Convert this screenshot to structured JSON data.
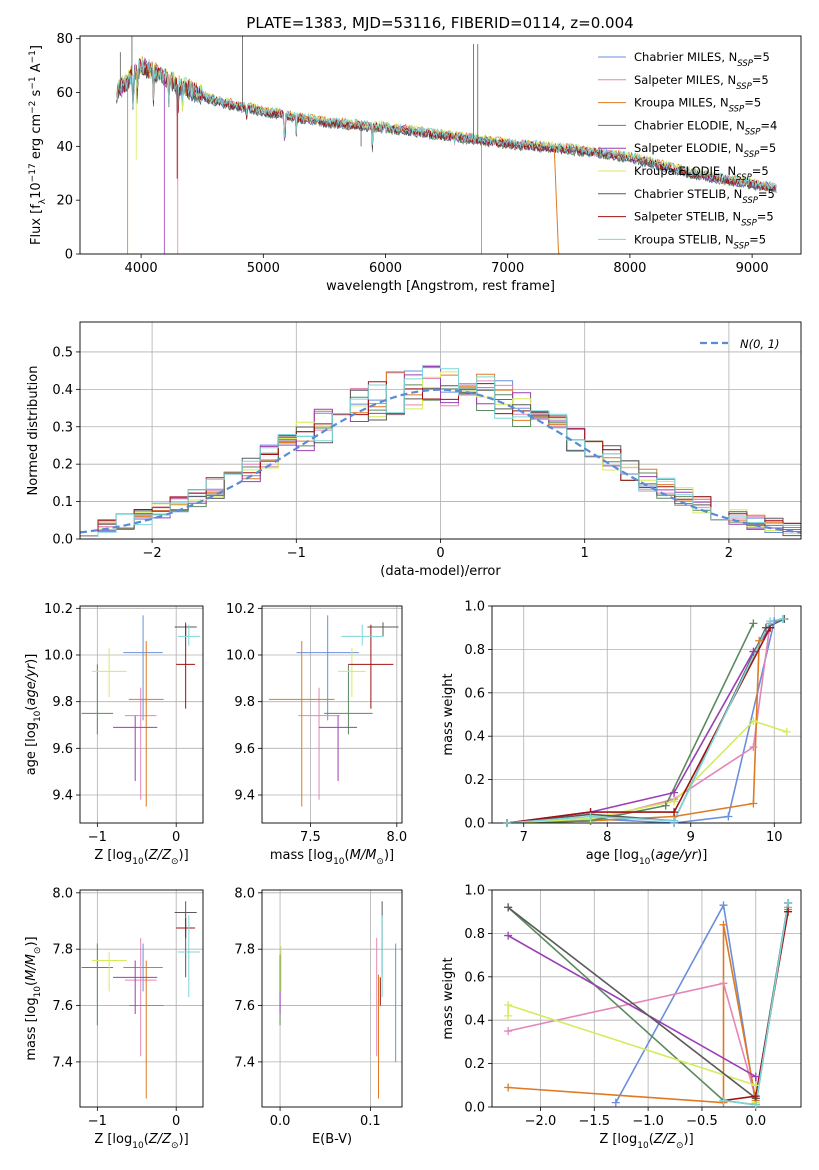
{
  "title": "PLATE=1383, MJD=53116, FIBERID=0114, z=0.004",
  "colors": [
    "#6a8fdc",
    "#e486b6",
    "#de7a22",
    "#5b8a5e",
    "#9b3fb5",
    "#d4ec5c",
    "#5a5a5a",
    "#a01212",
    "#7ed6d9"
  ],
  "legend_ssp": [
    {
      "label": "Chabrier MILES",
      "n": "5"
    },
    {
      "label": "Salpeter MILES",
      "n": "5"
    },
    {
      "label": "Kroupa MILES",
      "n": "5"
    },
    {
      "label": "Chabrier ELODIE",
      "n": "4"
    },
    {
      "label": "Salpeter ELODIE",
      "n": "5"
    },
    {
      "label": "Kroupa ELODIE",
      "n": "5"
    },
    {
      "label": "Chabrier STELIB",
      "n": "5"
    },
    {
      "label": "Salpeter STELIB",
      "n": "5"
    },
    {
      "label": "Kroupa STELIB",
      "n": "5"
    }
  ],
  "legend_ssp_sub": "SSP",
  "legend_ssp_prefix": "N",
  "normal_label": "N(0, 1)",
  "chart_data": [
    {
      "type": "line",
      "xlabel": "wavelength [Angstrom, rest frame]",
      "ylabel": "Flux [f_λ 10^-17 erg cm^-2 s^-1 A^-1]",
      "xlim": [
        3500,
        9400
      ],
      "ylim": [
        0,
        81
      ],
      "xticks": [
        4000,
        5000,
        6000,
        7000,
        8000,
        9000
      ],
      "yticks": [
        0,
        20,
        40,
        60,
        80
      ],
      "continuum": [
        [
          3800,
          60
        ],
        [
          4000,
          70
        ],
        [
          4300,
          63
        ],
        [
          4600,
          57
        ],
        [
          5000,
          53
        ],
        [
          5500,
          49
        ],
        [
          6000,
          47
        ],
        [
          6500,
          44
        ],
        [
          7000,
          41
        ],
        [
          7500,
          39
        ],
        [
          8000,
          36
        ],
        [
          8500,
          30
        ],
        [
          9000,
          26
        ],
        [
          9200,
          24.5
        ]
      ]
    },
    {
      "type": "line",
      "xlabel": "(data-model)/error",
      "ylabel": "Normed distribution",
      "xlim": [
        -2.5,
        2.5
      ],
      "ylim": [
        0,
        0.58
      ],
      "xticks": [
        -2,
        -1,
        0,
        1,
        2
      ],
      "yticks": [
        0.0,
        0.1,
        0.2,
        0.3,
        0.4,
        0.5
      ],
      "normal": {
        "mean": 0,
        "sd": 1
      }
    },
    {
      "type": "scatter",
      "xlabel": "Z [log10(Z/Z_sun)]",
      "ylabel": "age [log10(age/yr)]",
      "xlim": [
        -1.22,
        0.34
      ],
      "ylim": [
        9.28,
        10.21
      ],
      "xticks": [
        -1,
        0
      ],
      "yticks": [
        9.4,
        9.6,
        9.8,
        10.0,
        10.2
      ],
      "points": [
        {
          "x": -0.42,
          "y": 10.01,
          "xerr": 0.25,
          "ylo": 9.72,
          "yhi": 10.17
        },
        {
          "x": -0.45,
          "y": 9.74,
          "xerr": 0.2,
          "ylo": 9.38,
          "yhi": 9.86
        },
        {
          "x": -0.38,
          "y": 9.81,
          "xerr": 0.22,
          "ylo": 9.35,
          "yhi": 10.06
        },
        {
          "x": -1.0,
          "y": 9.75,
          "xerr": 0.2,
          "ylo": 9.66,
          "yhi": 9.96
        },
        {
          "x": -0.52,
          "y": 9.69,
          "xerr": 0.28,
          "ylo": 9.46,
          "yhi": 9.74
        },
        {
          "x": -0.85,
          "y": 9.93,
          "xerr": 0.22,
          "ylo": 9.82,
          "yhi": 10.03
        },
        {
          "x": 0.12,
          "y": 10.12,
          "xerr": 0.14,
          "ylo": 10.08,
          "yhi": 10.14
        },
        {
          "x": 0.12,
          "y": 9.96,
          "xerr": 0.12,
          "ylo": 9.77,
          "yhi": 10.13
        },
        {
          "x": 0.16,
          "y": 10.08,
          "xerr": 0.14,
          "ylo": 10.04,
          "yhi": 10.13
        }
      ]
    },
    {
      "type": "scatter",
      "xlabel": "mass [log10(M/M_sun)]",
      "ylabel": "",
      "xlim": [
        7.22,
        8.03
      ],
      "ylim": [
        9.28,
        10.21
      ],
      "xticks": [
        7.5,
        8.0
      ],
      "yticks": [
        9.4,
        9.6,
        9.8,
        10.0,
        10.2
      ],
      "points": [
        {
          "x": 7.6,
          "y": 10.01,
          "xerr": 0.18,
          "ylo": 9.72,
          "yhi": 10.17
        },
        {
          "x": 7.55,
          "y": 9.74,
          "xerr": 0.12,
          "ylo": 9.38,
          "yhi": 9.86
        },
        {
          "x": 7.45,
          "y": 9.81,
          "xerr": 0.19,
          "ylo": 9.35,
          "yhi": 10.06
        },
        {
          "x": 7.72,
          "y": 9.75,
          "xerr": 0.14,
          "ylo": 9.66,
          "yhi": 9.96
        },
        {
          "x": 7.66,
          "y": 9.69,
          "xerr": 0.11,
          "ylo": 9.46,
          "yhi": 9.74
        },
        {
          "x": 7.74,
          "y": 9.93,
          "xerr": 0.08,
          "ylo": 9.82,
          "yhi": 10.03
        },
        {
          "x": 7.92,
          "y": 10.12,
          "xerr": 0.09,
          "ylo": 10.08,
          "yhi": 10.14
        },
        {
          "x": 7.85,
          "y": 9.96,
          "xerr": 0.13,
          "ylo": 9.77,
          "yhi": 10.13
        },
        {
          "x": 7.8,
          "y": 10.08,
          "xerr": 0.12,
          "ylo": 10.04,
          "yhi": 10.13
        }
      ]
    },
    {
      "type": "line",
      "xlabel": "age [log10(age/yr)]",
      "ylabel": "mass weight",
      "xlim": [
        6.62,
        10.32
      ],
      "ylim": [
        0,
        1.0
      ],
      "xticks": [
        7,
        8,
        9,
        10
      ],
      "yticks": [
        0.0,
        0.2,
        0.4,
        0.6,
        0.8,
        1.0
      ],
      "series": [
        [
          [
            6.8,
            0.0
          ],
          [
            7.8,
            0.02
          ],
          [
            8.8,
            0.0
          ],
          [
            9.45,
            0.03
          ],
          [
            10.0,
            0.93
          ]
        ],
        [
          [
            6.8,
            0.0
          ],
          [
            7.8,
            0.01
          ],
          [
            8.8,
            0.11
          ],
          [
            9.75,
            0.35
          ],
          [
            9.95,
            0.92
          ]
        ],
        [
          [
            6.8,
            0.0
          ],
          [
            7.8,
            0.01
          ],
          [
            8.8,
            0.03
          ],
          [
            9.75,
            0.09
          ],
          [
            9.82,
            0.84
          ]
        ],
        [
          [
            6.8,
            0.0
          ],
          [
            7.8,
            0.01
          ],
          [
            8.7,
            0.08
          ],
          [
            9.75,
            0.92
          ]
        ],
        [
          [
            6.8,
            0.0
          ],
          [
            7.8,
            0.05
          ],
          [
            8.8,
            0.14
          ],
          [
            9.75,
            0.79
          ],
          [
            9.95,
            0.9
          ]
        ],
        [
          [
            6.8,
            0.0
          ],
          [
            7.8,
            0.02
          ],
          [
            8.8,
            0.1
          ],
          [
            9.75,
            0.47
          ],
          [
            10.15,
            0.42
          ]
        ],
        [
          [
            6.8,
            0.0
          ],
          [
            7.8,
            0.04
          ],
          [
            8.8,
            0.01
          ],
          [
            9.9,
            0.9
          ],
          [
            10.12,
            0.94
          ]
        ],
        [
          [
            6.8,
            0.0
          ],
          [
            7.8,
            0.05
          ],
          [
            8.8,
            0.05
          ],
          [
            9.95,
            0.9
          ]
        ],
        [
          [
            6.8,
            0.0
          ],
          [
            7.8,
            0.03
          ],
          [
            8.8,
            0.01
          ],
          [
            9.95,
            0.93
          ],
          [
            10.1,
            0.94
          ]
        ]
      ]
    },
    {
      "type": "scatter",
      "xlabel": "Z [log10(Z/Z_sun)]",
      "ylabel": "mass [log10(M/M_sun)]",
      "xlim": [
        -1.22,
        0.34
      ],
      "ylim": [
        7.24,
        8.01
      ],
      "xticks": [
        -1,
        0
      ],
      "yticks": [
        7.4,
        7.6,
        7.8,
        8.0
      ],
      "points": [
        {
          "x": -0.42,
          "y": 7.735,
          "xerr": 0.25,
          "ylo": 7.65,
          "yhi": 7.82
        },
        {
          "x": -0.45,
          "y": 7.69,
          "xerr": 0.2,
          "ylo": 7.42,
          "yhi": 7.84
        },
        {
          "x": -0.38,
          "y": 7.6,
          "xerr": 0.22,
          "ylo": 7.27,
          "yhi": 7.76
        },
        {
          "x": -1.0,
          "y": 7.735,
          "xerr": 0.2,
          "ylo": 7.53,
          "yhi": 7.82
        },
        {
          "x": -0.52,
          "y": 7.7,
          "xerr": 0.28,
          "ylo": 7.57,
          "yhi": 7.76
        },
        {
          "x": -0.85,
          "y": 7.76,
          "xerr": 0.22,
          "ylo": 7.65,
          "yhi": 7.79
        },
        {
          "x": 0.12,
          "y": 7.93,
          "xerr": 0.14,
          "ylo": 7.7,
          "yhi": 7.97
        },
        {
          "x": 0.12,
          "y": 7.875,
          "xerr": 0.12,
          "ylo": 7.84,
          "yhi": 7.91
        },
        {
          "x": 0.16,
          "y": 7.79,
          "xerr": 0.14,
          "ylo": 7.63,
          "yhi": 7.92
        }
      ]
    },
    {
      "type": "scatter",
      "xlabel": "E(B-V)",
      "ylabel": "",
      "xlim": [
        -0.02,
        0.135
      ],
      "ylim": [
        7.24,
        8.01
      ],
      "xticks": [
        0.0,
        0.1
      ],
      "yticks": [
        7.4,
        7.6,
        7.8,
        8.0
      ],
      "points": [
        {
          "x": 0.128,
          "y": 7.735,
          "ylo": 7.4,
          "yhi": 7.82
        },
        {
          "x": 0.107,
          "y": 7.69,
          "ylo": 7.42,
          "yhi": 7.84
        },
        {
          "x": 0.109,
          "y": 7.6,
          "ylo": 7.27,
          "yhi": 7.71
        },
        {
          "x": 0.0,
          "y": 7.735,
          "ylo": 7.53,
          "yhi": 7.78
        },
        {
          "x": 0.0,
          "y": 7.7,
          "ylo": 7.57,
          "yhi": 7.65
        },
        {
          "x": 0.001,
          "y": 7.76,
          "ylo": 7.65,
          "yhi": 7.81
        },
        {
          "x": 0.113,
          "y": 7.93,
          "ylo": 7.7,
          "yhi": 7.97
        },
        {
          "x": 0.111,
          "y": 7.875,
          "ylo": 7.6,
          "yhi": 7.7
        },
        {
          "x": 0.113,
          "y": 7.79,
          "ylo": 7.63,
          "yhi": 7.92
        }
      ]
    },
    {
      "type": "line",
      "xlabel": "Z [log10(Z/Z_sun)]",
      "ylabel": "mass weight",
      "xlim": [
        -2.45,
        0.42
      ],
      "ylim": [
        0,
        1.0
      ],
      "xticks": [
        -2.0,
        -1.5,
        -1.0,
        -0.5,
        0.0
      ],
      "yticks": [
        0.0,
        0.2,
        0.4,
        0.6,
        0.8,
        1.0
      ],
      "series": [
        [
          [
            -1.3,
            0.02
          ],
          [
            -0.3,
            0.93
          ],
          [
            0.0,
            0.01
          ],
          [
            0.3,
            0.94
          ]
        ],
        [
          [
            -2.3,
            0.35
          ],
          [
            -0.3,
            0.57
          ],
          [
            0.0,
            0.04
          ],
          [
            0.3,
            0.92
          ]
        ],
        [
          [
            -2.3,
            0.09
          ],
          [
            -0.3,
            0.02
          ],
          [
            -0.3,
            0.84
          ],
          [
            0.0,
            0.03
          ],
          [
            0.3,
            0.91
          ]
        ],
        [
          [
            -2.3,
            0.92
          ],
          [
            -0.3,
            0.03
          ],
          [
            0.0,
            0.01
          ],
          [
            0.3,
            0.94
          ]
        ],
        [
          [
            -2.3,
            0.79
          ],
          [
            0.0,
            0.14
          ],
          [
            0.0,
            0.02
          ]
        ],
        [
          [
            -2.3,
            0.42
          ],
          [
            -2.3,
            0.47
          ],
          [
            0.0,
            0.1
          ],
          [
            0.0,
            0.02
          ]
        ],
        [
          [
            -2.3,
            0.92
          ],
          [
            0.0,
            0.04
          ],
          [
            0.3,
            0.94
          ]
        ],
        [
          [
            -0.3,
            0.03
          ],
          [
            0.0,
            0.05
          ],
          [
            0.3,
            0.9
          ]
        ],
        [
          [
            -0.3,
            0.03
          ],
          [
            0.0,
            0.01
          ],
          [
            0.3,
            0.94
          ]
        ]
      ]
    }
  ]
}
